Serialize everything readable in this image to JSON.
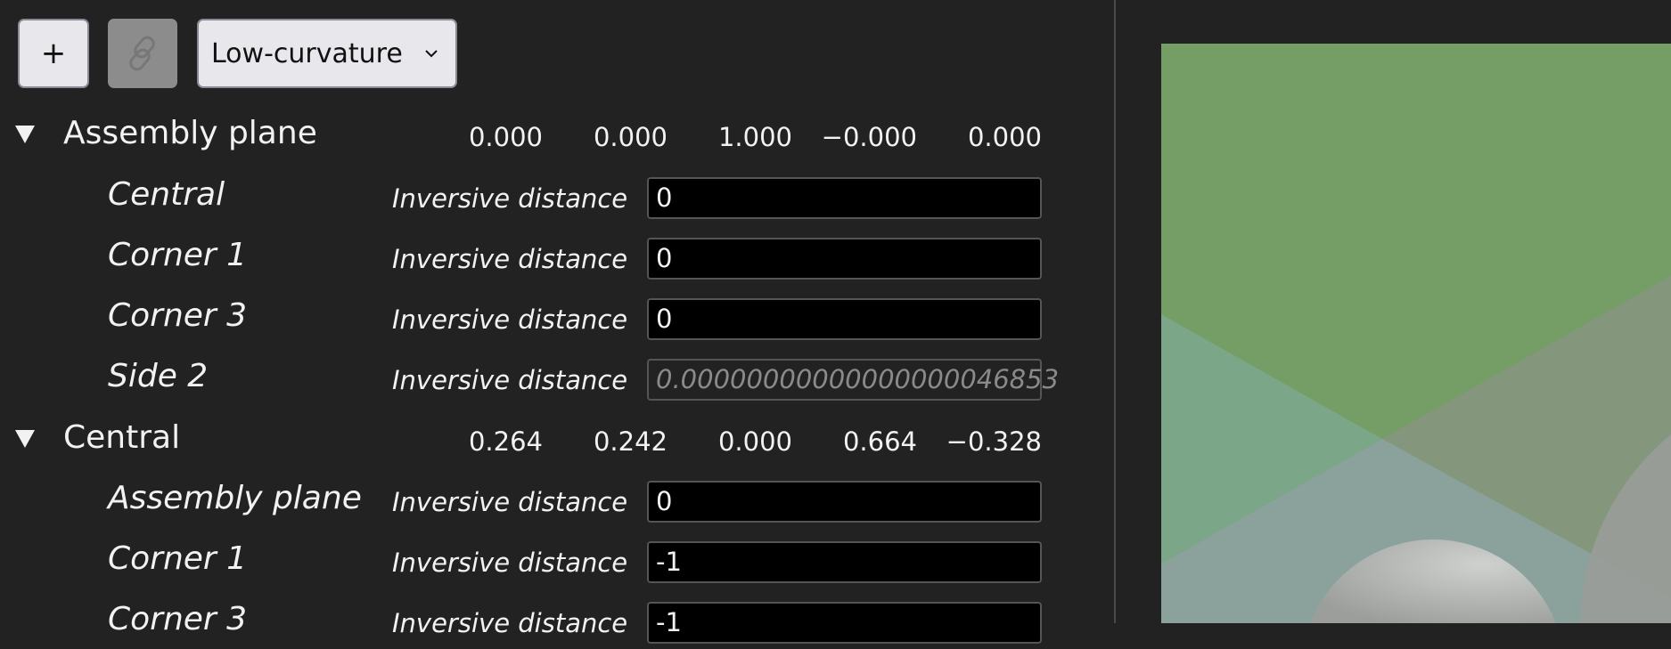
{
  "toolbar": {
    "add_label": "+",
    "link_icon": "link-icon",
    "dropdown_value": "Low-curvature"
  },
  "sections": [
    {
      "title": "Assembly plane",
      "values": [
        "0.000",
        "0.000",
        "1.000",
        "−0.000",
        "0.000"
      ],
      "constraints": [
        {
          "element": "Central",
          "kind": "Inversive distance",
          "value": "0",
          "placeholder": ""
        },
        {
          "element": "Corner 1",
          "kind": "Inversive distance",
          "value": "0",
          "placeholder": ""
        },
        {
          "element": "Corner 3",
          "kind": "Inversive distance",
          "value": "0",
          "placeholder": ""
        },
        {
          "element": "Side 2",
          "kind": "Inversive distance",
          "value": "",
          "placeholder": "0.00000000000000000046853"
        }
      ]
    },
    {
      "title": "Central",
      "values": [
        "0.264",
        "0.242",
        "0.000",
        "0.664",
        "−0.328"
      ],
      "constraints": [
        {
          "element": "Assembly plane",
          "kind": "Inversive distance",
          "value": "0",
          "placeholder": ""
        },
        {
          "element": "Corner 1",
          "kind": "Inversive distance",
          "value": "-1",
          "placeholder": ""
        },
        {
          "element": "Corner 3",
          "kind": "Inversive distance",
          "value": "-1",
          "placeholder": ""
        }
      ]
    }
  ],
  "colors": {
    "background": "#222222",
    "canvas_green": "#759d66",
    "canvas_teal": "#7ba687",
    "canvas_olive": "#84977d",
    "canvas_gray": "#8aa29b"
  }
}
